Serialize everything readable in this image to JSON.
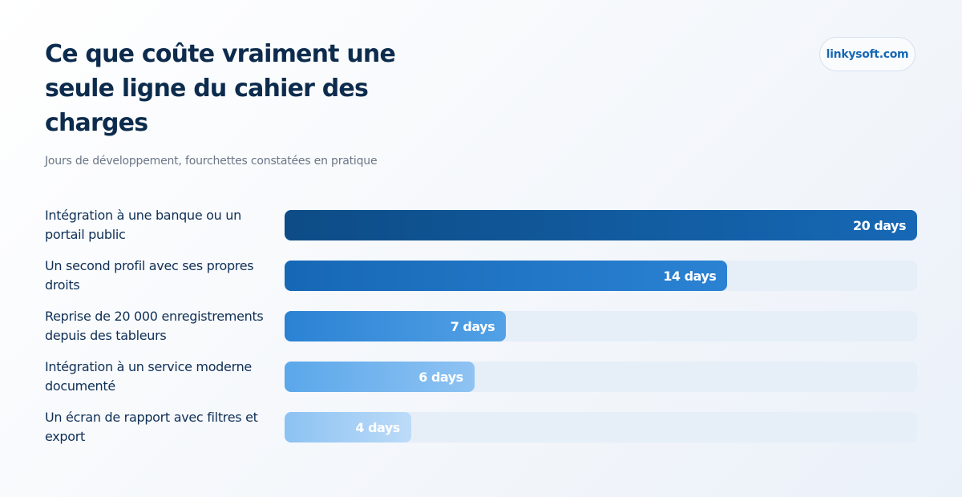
{
  "header": {
    "title": "Ce que coûte vraiment une seule ligne du cahier des charges",
    "subtitle": "Jours de développement, fourchettes constatées en pratique",
    "brand": "linkysoft.com"
  },
  "chart_data": {
    "type": "bar",
    "orientation": "horizontal",
    "title": "Ce que coûte vraiment une seule ligne du cahier des charges",
    "subtitle": "Jours de développement, fourchettes constatées en pratique",
    "categories": [
      "Intégration à une banque ou un portail public",
      "Un second profil avec ses propres droits",
      "Reprise de 20 000 enregistrements depuis des tableurs",
      "Intégration à un service moderne documenté",
      "Un écran de rapport avec filtres et export"
    ],
    "values": [
      20,
      14,
      7,
      6,
      4
    ],
    "value_labels": [
      "20 days",
      "14 days",
      "7 days",
      "6 days",
      "4 days"
    ],
    "xlim": [
      0,
      20
    ],
    "grid": false,
    "legend": "none",
    "colors": {
      "track": "#e6eef8",
      "gradients": [
        [
          "#0d4c86",
          "#1668b5"
        ],
        [
          "#1668b5",
          "#2b82d3"
        ],
        [
          "#2b82d3",
          "#52a1e6"
        ],
        [
          "#5aa7ea",
          "#8fc3f3"
        ],
        [
          "#8cc2f2",
          "#bcdbf8"
        ]
      ]
    }
  }
}
